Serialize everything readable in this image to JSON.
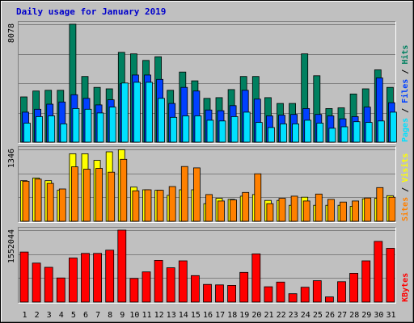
{
  "title": "Daily usage for January 2019",
  "colors": {
    "background": "#c0c0c0",
    "hits": "#008060",
    "files": "#0040ff",
    "pages": "#00e0ff",
    "visits": "#ffff00",
    "sites": "#ff8000",
    "kbytes": "#ff0000",
    "weekend_label": "#008040",
    "title": "#0000cc"
  },
  "chart_data": [
    {
      "type": "bar",
      "panel": "top",
      "max_label": "8078",
      "ylim": [
        0,
        8078
      ],
      "legend": [
        {
          "text": "Pages",
          "color": "#00e0ff"
        },
        {
          "text": " / ",
          "color": "#000000"
        },
        {
          "text": "Files",
          "color": "#0040ff"
        },
        {
          "text": " / ",
          "color": "#000000"
        },
        {
          "text": "Hits",
          "color": "#008060"
        }
      ],
      "series": [
        {
          "name": "Hits",
          "values": [
            3100,
            3500,
            3550,
            3550,
            8078,
            4500,
            3750,
            3650,
            6150,
            6050,
            5600,
            5850,
            3550,
            4800,
            4200,
            3000,
            3050,
            3600,
            4500,
            4500,
            3050,
            2650,
            2650,
            6050,
            4550,
            2300,
            2350,
            3300,
            3650,
            4950,
            3750
          ]
        },
        {
          "name": "Files",
          "values": [
            2050,
            2250,
            2600,
            2750,
            3250,
            3000,
            2550,
            2900,
            4000,
            4600,
            4600,
            4300,
            2650,
            3750,
            3500,
            2200,
            2150,
            2500,
            3550,
            2950,
            1800,
            1850,
            1900,
            2300,
            1900,
            1800,
            1600,
            1750,
            2400,
            4400,
            2700
          ]
        },
        {
          "name": "Pages",
          "values": [
            1300,
            1750,
            1800,
            1250,
            2300,
            2250,
            2000,
            2400,
            4050,
            4100,
            4100,
            3000,
            1700,
            1800,
            1800,
            1500,
            1450,
            1750,
            2050,
            1350,
            1000,
            1250,
            1250,
            1500,
            1300,
            950,
            1050,
            1400,
            1350,
            1450,
            2050
          ]
        }
      ]
    },
    {
      "type": "bar",
      "panel": "middle",
      "max_label": "1346",
      "ylim": [
        0,
        1346
      ],
      "legend": [
        {
          "text": "Sites",
          "color": "#ff8000"
        },
        {
          "text": " / ",
          "color": "#000000"
        },
        {
          "text": "Visits",
          "color": "#ffff00"
        }
      ],
      "series": [
        {
          "name": "Visits",
          "values": [
            760,
            810,
            760,
            580,
            1265,
            1265,
            1140,
            1300,
            1340,
            640,
            590,
            580,
            485,
            590,
            590,
            330,
            430,
            410,
            470,
            500,
            390,
            390,
            300,
            450,
            300,
            300,
            300,
            280,
            420,
            430,
            480
          ]
        },
        {
          "name": "Sites",
          "values": [
            750,
            790,
            710,
            605,
            1020,
            975,
            990,
            920,
            1160,
            570,
            590,
            580,
            650,
            1025,
            1000,
            500,
            380,
            400,
            540,
            890,
            330,
            430,
            470,
            380,
            510,
            410,
            360,
            380,
            435,
            630,
            450
          ]
        }
      ]
    },
    {
      "type": "bar",
      "panel": "bottom",
      "max_label": "1552044",
      "ylim": [
        0,
        1552044
      ],
      "legend": [
        {
          "text": "KBytes",
          "color": "#ff0000"
        }
      ],
      "series": [
        {
          "name": "KBytes",
          "values": [
            1080000,
            840000,
            750000,
            520000,
            950000,
            1050000,
            1050000,
            1120000,
            1552044,
            510000,
            650000,
            900000,
            740000,
            890000,
            570000,
            380000,
            370000,
            360000,
            640000,
            1040000,
            330000,
            430000,
            180000,
            320000,
            460000,
            110000,
            440000,
            620000,
            890000,
            1310000,
            1160000
          ]
        }
      ]
    }
  ],
  "x_axis": {
    "labels": [
      "1",
      "2",
      "3",
      "4",
      "5",
      "6",
      "7",
      "8",
      "9",
      "10",
      "11",
      "12",
      "13",
      "14",
      "15",
      "16",
      "17",
      "18",
      "19",
      "20",
      "21",
      "22",
      "23",
      "24",
      "25",
      "26",
      "27",
      "28",
      "29",
      "30",
      "31"
    ],
    "weekend_days": [
      5,
      6,
      12,
      13,
      19,
      20,
      26,
      27
    ]
  }
}
